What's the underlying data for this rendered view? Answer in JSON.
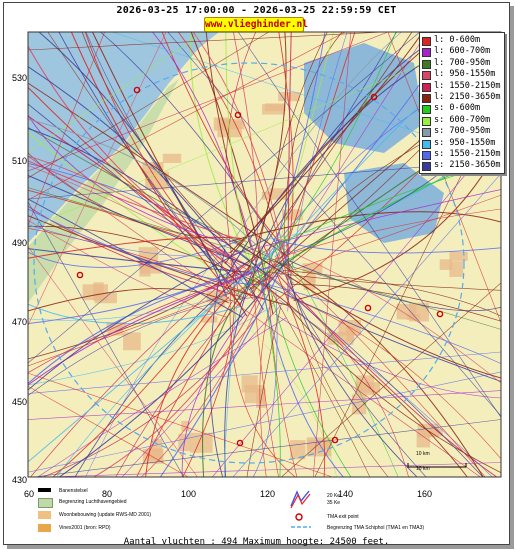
{
  "header": {
    "date_range": "2026-03-25 17:00:00 - 2026-03-25 22:59:59 CET",
    "brand": "www.vlieghinder.nl"
  },
  "legend": [
    {
      "label": "l: 0-600m",
      "color": "#dd2222"
    },
    {
      "label": "l: 600-700m",
      "color": "#aa22cc"
    },
    {
      "label": "l: 700-950m",
      "color": "#447722"
    },
    {
      "label": "l: 950-1550m",
      "color": "#dd4466"
    },
    {
      "label": "l: 1550-2150m",
      "color": "#cc2255"
    },
    {
      "label": "l: 2150-3650m",
      "color": "#882211"
    },
    {
      "label": "s: 0-600m",
      "color": "#22cc22"
    },
    {
      "label": "s: 600-700m",
      "color": "#99ee44"
    },
    {
      "label": "s: 700-950m",
      "color": "#8899aa"
    },
    {
      "label": "s: 950-1550m",
      "color": "#44bbee"
    },
    {
      "label": "s: 1550-2150m",
      "color": "#5566ee"
    },
    {
      "label": "s: 2150-3650m",
      "color": "#3a3a99"
    }
  ],
  "axes": {
    "y_ticks": [
      "530",
      "510",
      "490",
      "470",
      "450",
      "430"
    ],
    "x_ticks": [
      "60",
      "80",
      "100",
      "120",
      "140",
      "160"
    ]
  },
  "scale": {
    "label_top": "10 km",
    "label_bottom": "10 km"
  },
  "bottom_legend": {
    "runway": "Banenstelsel",
    "airport_boundary": "Begrenzing Luchthavengebied",
    "housing": "Woonbebouwing (update RWS-MD 2001)",
    "vinex": "Vinex2001 (bron: RPD)",
    "contour_20": "20 Ke",
    "contour_35": "35 Ke",
    "tma_exit": "TMA exit point",
    "tma_boundary": "Begrenzing TMA Schiphol  (TMA1 en TMA3)"
  },
  "footer": "Aantal vluchten : 494 Maximum hoogte: 24500 feet.",
  "colors": {
    "sea": "#9fc6df",
    "land": "#f4eebd",
    "urban": "#e8b88a",
    "green": "#bfd9a8",
    "water_body": "#8db8d8",
    "tma_exit": "#cc0000"
  }
}
